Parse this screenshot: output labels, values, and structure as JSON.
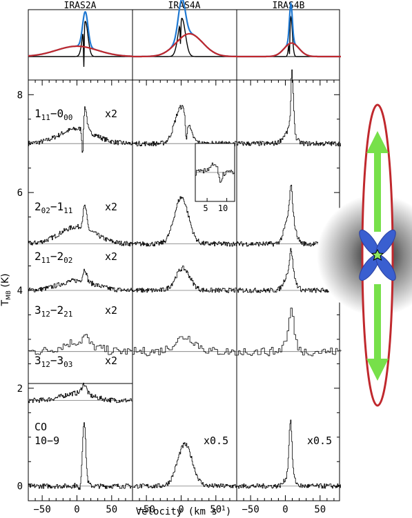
{
  "chart_data": {
    "type": "line",
    "columns": [
      "IRAS2A",
      "IRAS4A",
      "IRAS4B"
    ],
    "xlabel": "Velocity (km s",
    "xlabel_sup": "-1",
    "xlabel_close": ")",
    "ylabel": "T",
    "ylabel_sub": "MB",
    "ylabel_unit": "(K)",
    "xlim": [
      -70,
      80
    ],
    "ylim": [
      -0.3,
      8.3
    ],
    "x_ticks": [
      "-50",
      "0",
      "50"
    ],
    "y_ticks": [
      "0",
      "2",
      "4",
      "6",
      "8"
    ],
    "lines": [
      {
        "upper": "1",
        "upper_sub": "11",
        "lower": "0",
        "lower_sub": "00",
        "mult": "x2"
      },
      {
        "upper": "2",
        "upper_sub": "02",
        "lower": "1",
        "lower_sub": "11",
        "mult": "x2"
      },
      {
        "upper": "2",
        "upper_sub": "11",
        "lower": "2",
        "lower_sub": "02",
        "mult": "x2"
      },
      {
        "upper": "3",
        "upper_sub": "12",
        "lower": "2",
        "lower_sub": "21",
        "mult": "x2"
      },
      {
        "upper": "3",
        "upper_sub": "12",
        "lower": "3",
        "lower_sub": "03",
        "mult": "x2"
      }
    ],
    "co_label": [
      "CO",
      "10−9"
    ],
    "co_mult_4a": "x0.5",
    "co_mult_4b": "x0.5",
    "inset_ticks": [
      "5",
      "10"
    ],
    "series": [
      {
        "column": 0,
        "baseline": 7.0,
        "center": 10,
        "components": [
          {
            "amp": 0.3,
            "fwhm": 60,
            "center": 0
          },
          {
            "amp": 0.5,
            "fwhm": 6,
            "center": 11
          }
        ],
        "absorption": {
          "depth": 0.7,
          "center": 8,
          "width": 1.2
        }
      },
      {
        "column": 0,
        "baseline": 4.95,
        "center": 10,
        "components": [
          {
            "amp": 0.35,
            "fwhm": 60,
            "center": 0
          },
          {
            "amp": 0.45,
            "fwhm": 6,
            "center": 11
          }
        ]
      },
      {
        "column": 0,
        "baseline": 4.0,
        "center": 10,
        "components": [
          {
            "amp": 0.2,
            "fwhm": 60,
            "center": 0
          },
          {
            "amp": 0.25,
            "fwhm": 6,
            "center": 11
          }
        ]
      },
      {
        "column": 0,
        "baseline": 2.75,
        "center": 10,
        "components": [
          {
            "amp": 0.2,
            "fwhm": 50,
            "center": 0
          },
          {
            "amp": 0.15,
            "fwhm": 8,
            "center": 11
          }
        ]
      },
      {
        "column": 0,
        "baseline": 1.75,
        "center": 10,
        "components": [
          {
            "amp": 0.15,
            "fwhm": 50,
            "center": 0
          },
          {
            "amp": 0.2,
            "fwhm": 8,
            "center": 10
          }
        ]
      },
      {
        "column": 0,
        "baseline": 0.0,
        "center": 10,
        "components": [
          {
            "amp": 0.2,
            "fwhm": 12,
            "center": 8
          },
          {
            "amp": 1.15,
            "fwhm": 5,
            "center": 10
          }
        ],
        "absorption": {
          "depth": 0.2,
          "center": 3,
          "width": 2
        }
      },
      {
        "column": 1,
        "baseline": 7.0,
        "center": 7,
        "components": [
          {
            "amp": 0.75,
            "fwhm": 22,
            "center": 0
          }
        ],
        "absorption": {
          "depth": 0.5,
          "center": 7,
          "width": 1.2
        }
      },
      {
        "column": 1,
        "baseline": 4.95,
        "center": 7,
        "components": [
          {
            "amp": 0.95,
            "fwhm": 24,
            "center": 0
          }
        ]
      },
      {
        "column": 1,
        "baseline": 4.0,
        "center": 7,
        "components": [
          {
            "amp": 0.45,
            "fwhm": 24,
            "center": 2
          }
        ]
      },
      {
        "column": 1,
        "baseline": 2.75,
        "center": 7,
        "components": [
          {
            "amp": 0.3,
            "fwhm": 35,
            "center": 5
          }
        ]
      },
      {
        "column": 1,
        "baseline": 0.0,
        "center": 7,
        "components": [
          {
            "amp": 0.85,
            "fwhm": 25,
            "center": 5
          }
        ]
      },
      {
        "column": 2,
        "baseline": 7.0,
        "center": 7,
        "components": [
          {
            "amp": 0.25,
            "fwhm": 18,
            "center": 5
          },
          {
            "amp": 1.3,
            "fwhm": 5,
            "center": 9
          }
        ],
        "absorption": {
          "depth": 0.4,
          "center": 7,
          "width": 1
        }
      },
      {
        "column": 2,
        "baseline": 4.95,
        "center": 7,
        "components": [
          {
            "amp": 0.6,
            "fwhm": 16,
            "center": 6
          },
          {
            "amp": 0.6,
            "fwhm": 5,
            "center": 8
          }
        ]
      },
      {
        "column": 2,
        "baseline": 4.0,
        "center": 7,
        "components": [
          {
            "amp": 0.4,
            "fwhm": 16,
            "center": 6
          },
          {
            "amp": 0.45,
            "fwhm": 5,
            "center": 8
          }
        ]
      },
      {
        "column": 2,
        "baseline": 2.75,
        "center": 7,
        "components": [
          {
            "amp": 0.4,
            "fwhm": 16,
            "center": 6
          },
          {
            "amp": 0.5,
            "fwhm": 6,
            "center": 8
          }
        ]
      },
      {
        "column": 2,
        "baseline": 0.0,
        "center": 7,
        "components": [
          {
            "amp": 0.25,
            "fwhm": 14,
            "center": 6
          },
          {
            "amp": 1.1,
            "fwhm": 5,
            "center": 7
          }
        ]
      }
    ],
    "models": [
      {
        "column": 0,
        "center": 7,
        "broad": {
          "amp": 0.5,
          "fwhm": 70,
          "center": 0
        },
        "narrow": {
          "amp": 1.7,
          "fwhm": 9,
          "center": 12
        },
        "absorption": 0.9
      },
      {
        "column": 1,
        "center": 7,
        "broad": {
          "amp": 1.1,
          "fwhm": 45,
          "center": 12
        },
        "narrow": {
          "amp": 1.85,
          "fwhm": 12,
          "center": 1
        },
        "absorption": 0.5
      },
      {
        "column": 2,
        "center": 7,
        "broad": {
          "amp": 0.65,
          "fwhm": 25,
          "center": 9
        },
        "narrow": {
          "amp": 1.9,
          "fwhm": 5,
          "center": 8
        },
        "absorption": 0.5
      }
    ],
    "colors": {
      "model_total": "#1f78d1",
      "model_broad": "#c0282d",
      "outflow_arrow": "#77e04a",
      "envelope": "#bfbfbf",
      "lobes": "#3a5fd0",
      "star": "#8fe860"
    }
  }
}
